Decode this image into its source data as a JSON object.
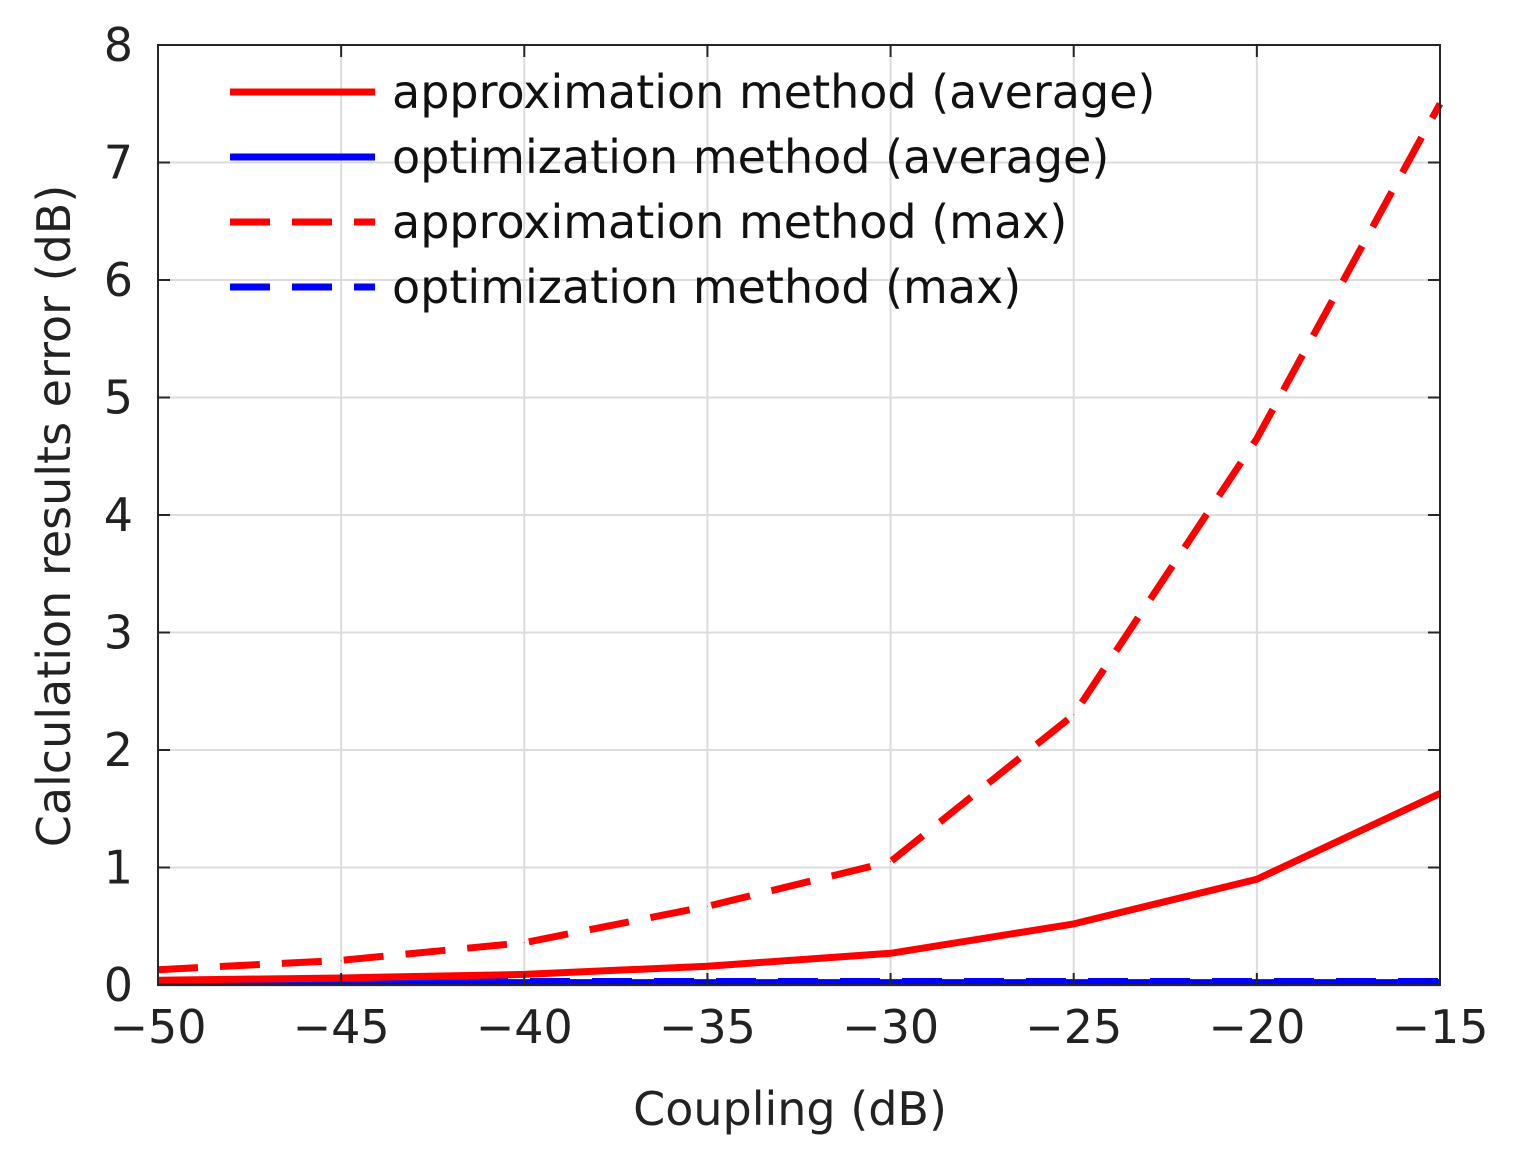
{
  "chart_data": {
    "type": "line",
    "title": "",
    "xlabel": "Coupling (dB)",
    "ylabel": "Calculation results error (dB)",
    "xlim": [
      -50,
      -15
    ],
    "ylim": [
      0,
      8
    ],
    "grid": true,
    "legend_position": "top-left",
    "xticks": [
      -50,
      -45,
      -40,
      -35,
      -30,
      -25,
      -20,
      -15
    ],
    "xtick_labels": [
      "−50",
      "−45",
      "−40",
      "−35",
      "−30",
      "−25",
      "−20",
      "−15"
    ],
    "yticks": [
      0,
      1,
      2,
      3,
      4,
      5,
      6,
      7,
      8
    ],
    "ytick_labels": [
      "0",
      "1",
      "2",
      "3",
      "4",
      "5",
      "6",
      "7",
      "8"
    ],
    "x": [
      -50,
      -45,
      -40,
      -35,
      -30,
      -25,
      -20,
      -15
    ],
    "series": [
      {
        "name": "approximation method (average)",
        "color": "#ff0000",
        "style": "solid",
        "values": [
          0.04,
          0.06,
          0.09,
          0.16,
          0.27,
          0.52,
          0.9,
          1.63
        ]
      },
      {
        "name": "optimization method (average)",
        "color": "#0000ff",
        "style": "solid",
        "values": [
          0.02,
          0.02,
          0.02,
          0.02,
          0.02,
          0.02,
          0.02,
          0.02
        ]
      },
      {
        "name": "approximation method (max)",
        "color": "#ff0000",
        "style": "dashed",
        "values": [
          0.13,
          0.21,
          0.36,
          0.67,
          1.05,
          2.3,
          4.65,
          7.5
        ]
      },
      {
        "name": "optimization method (max)",
        "color": "#0000ff",
        "style": "dashed",
        "values": [
          0.03,
          0.03,
          0.03,
          0.03,
          0.03,
          0.03,
          0.03,
          0.03
        ]
      }
    ]
  }
}
